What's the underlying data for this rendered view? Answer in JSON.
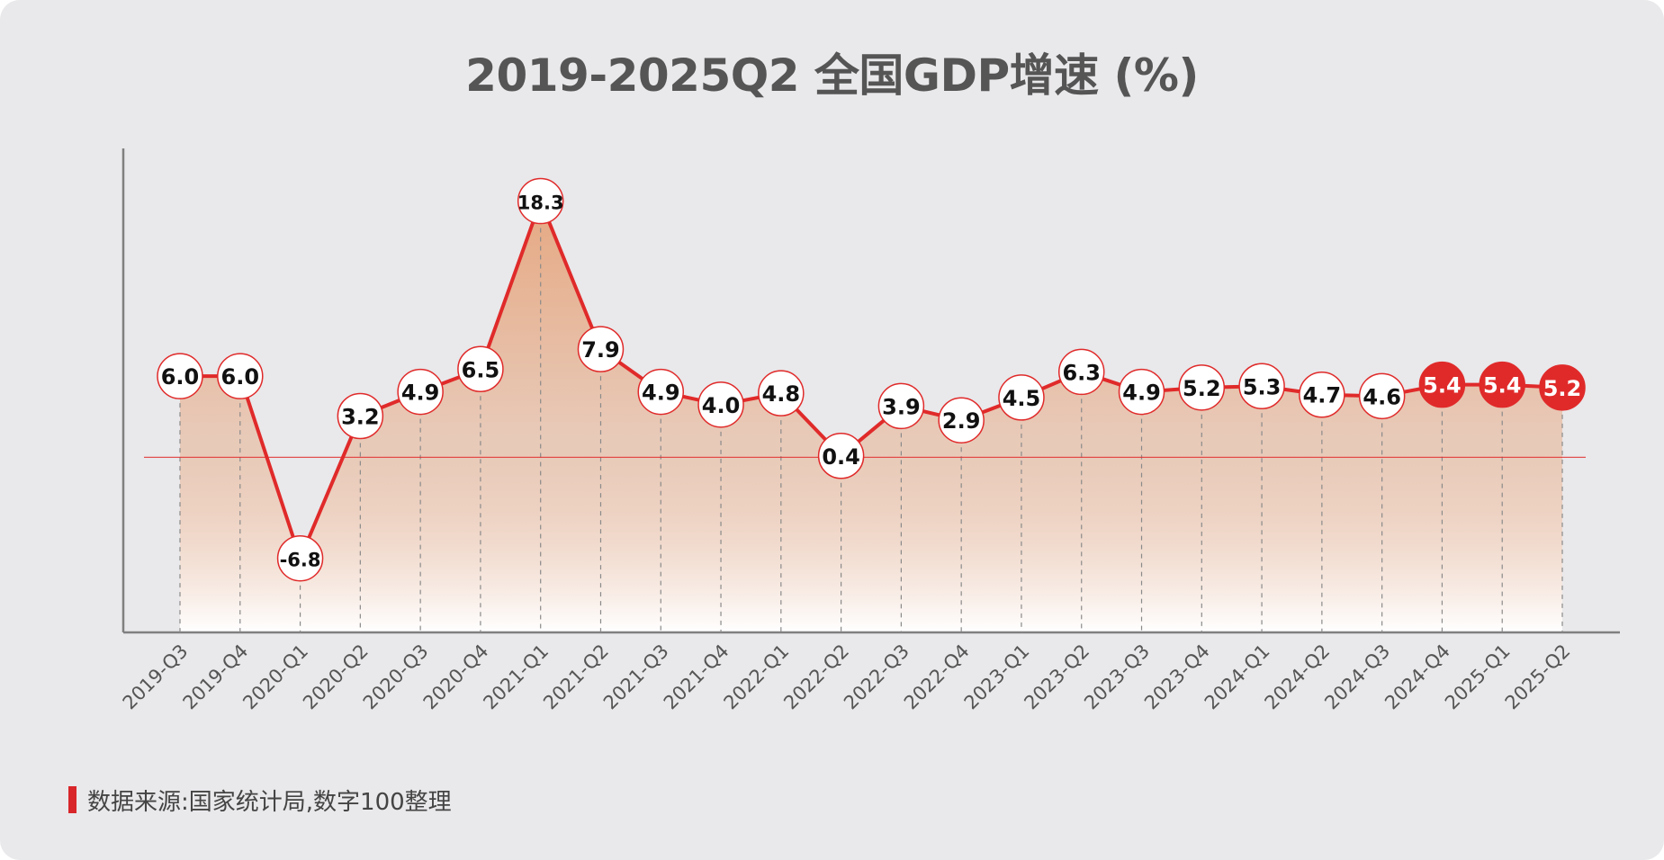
{
  "title": "2019-2025Q2 全国GDP增速 (%)",
  "source": "数据来源:国家统计局,数字100整理",
  "colors": {
    "line": "#e02a2a",
    "highlight": "#e02a2a",
    "area_top": "#e6a57d",
    "axis": "#808080",
    "background": "#e9e8ea"
  },
  "chart_data": {
    "type": "line",
    "title": "2019-2025Q2 全国GDP增速 (%)",
    "xlabel": "",
    "ylabel": "",
    "categories": [
      "2019-Q3",
      "2019-Q4",
      "2020-Q1",
      "2020-Q2",
      "2020-Q3",
      "2020-Q4",
      "2021-Q1",
      "2021-Q2",
      "2021-Q3",
      "2021-Q4",
      "2022-Q1",
      "2022-Q2",
      "2022-Q3",
      "2022-Q4",
      "2023-Q1",
      "2023-Q2",
      "2023-Q3",
      "2023-Q4",
      "2024-Q1",
      "2024-Q2",
      "2024-Q3",
      "2024-Q4",
      "2025-Q1",
      "2025-Q2"
    ],
    "series": [
      {
        "values": [
          6.0,
          6.0,
          -6.8,
          3.2,
          4.9,
          6.5,
          18.3,
          7.9,
          4.9,
          4.0,
          4.8,
          0.4,
          3.9,
          2.9,
          4.5,
          6.3,
          4.9,
          5.2,
          5.3,
          4.7,
          4.6,
          5.4,
          5.4,
          5.2
        ],
        "labels": [
          "6.0",
          "6.0",
          "-6.8",
          "3.2",
          "4.9",
          "6.5",
          "18.3",
          "7.9",
          "4.9",
          "4.0",
          "4.8",
          "0.4",
          "3.9",
          "2.9",
          "4.5",
          "6.3",
          "4.9",
          "5.2",
          "5.3",
          "4.7",
          "4.6",
          "5.4",
          "5.4",
          "5.2"
        ]
      }
    ],
    "highlighted": [
      "2024-Q4",
      "2025-Q1",
      "2025-Q2"
    ],
    "ylim": [
      -12,
      22
    ],
    "reference_line": 0.3,
    "fill": "area-gradient",
    "grid": false,
    "legend": "none"
  }
}
